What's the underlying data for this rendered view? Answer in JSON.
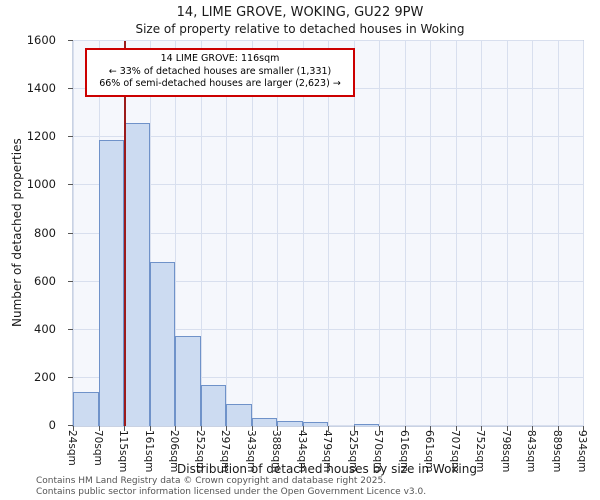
{
  "annotation": {
    "lines": [
      "14 LIME GROVE: 116sqm",
      "← 33% of detached houses are smaller (1,331)",
      "66% of semi-detached houses are larger (2,623) →"
    ]
  },
  "footer": {
    "line1": "Contains HM Land Registry data © Crown copyright and database right 2025.",
    "line2": "Contains public sector information licensed under the Open Government Licence v3.0."
  },
  "chart_data": {
    "type": "bar",
    "title": "14, LIME GROVE, WOKING, GU22 9PW",
    "subtitle": "Size of property relative to detached houses in Woking",
    "xlabel": "Distribution of detached houses by size in Woking",
    "ylabel": "Number of detached properties",
    "ylim": [
      0,
      1600
    ],
    "y_ticks": [
      0,
      200,
      400,
      600,
      800,
      1000,
      1200,
      1400,
      1600
    ],
    "grid": true,
    "legend": false,
    "bin_edges_sqm": [
      24,
      70,
      115,
      161,
      206,
      252,
      297,
      343,
      388,
      434,
      479,
      525,
      570,
      616,
      661,
      707,
      752,
      798,
      843,
      889,
      934
    ],
    "categories": [
      "24sqm",
      "70sqm",
      "115sqm",
      "161sqm",
      "206sqm",
      "252sqm",
      "297sqm",
      "343sqm",
      "388sqm",
      "434sqm",
      "479sqm",
      "525sqm",
      "570sqm",
      "616sqm",
      "661sqm",
      "707sqm",
      "752sqm",
      "798sqm",
      "843sqm",
      "889sqm",
      "934sqm"
    ],
    "values": [
      140,
      1190,
      1260,
      680,
      375,
      170,
      90,
      35,
      20,
      15,
      0,
      10,
      0,
      0,
      0,
      0,
      0,
      0,
      0,
      0
    ],
    "marker": {
      "sqm": 116,
      "label": "14 LIME GROVE: 116sqm"
    },
    "colors": {
      "bar_fill": "#ccdbf1",
      "bar_border": "#6f92c9",
      "grid": "#d8dfee",
      "plot_bg": "#f5f7fc",
      "marker_line": "#9b1b1b",
      "annotation_border": "#cc0000"
    }
  }
}
